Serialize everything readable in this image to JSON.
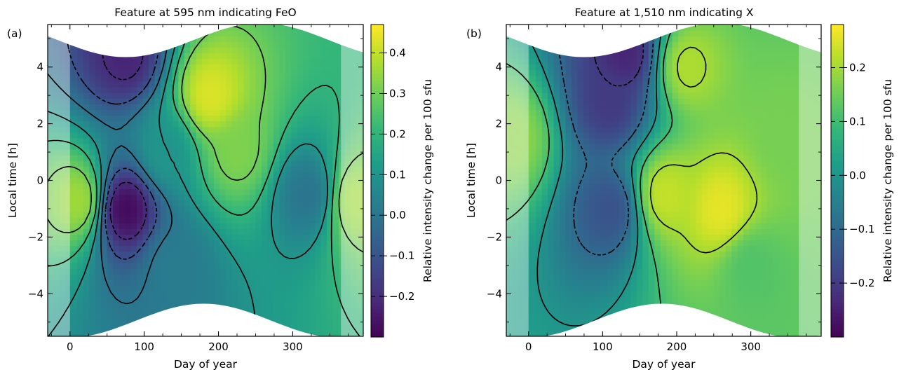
{
  "chart_data": [
    {
      "type": "heatmap",
      "panel_label": "(a)",
      "title": "Feature at 595 nm indicating FeO",
      "xlabel": "Day of year",
      "ylabel": "Local time [h]",
      "xlim": [
        -30,
        395
      ],
      "ylim": [
        -5.5,
        5.5
      ],
      "x_ticks": [
        0,
        100,
        200,
        300
      ],
      "y_ticks": [
        -4,
        -2,
        0,
        2,
        4
      ],
      "colorbar": {
        "label": "Relative intensity change per 100 sfu",
        "range": [
          -0.3,
          0.47
        ],
        "ticks": [
          -0.2,
          -0.1,
          0.0,
          0.1,
          0.2,
          0.3,
          0.4
        ]
      },
      "contour_levels": [
        -0.2,
        -0.1,
        0.0,
        0.1,
        0.2,
        0.3
      ],
      "hotspots": [
        {
          "day": 75,
          "time": -1.0,
          "value": -0.28
        },
        {
          "day": 75,
          "time": 4.4,
          "value": -0.22
        },
        {
          "day": 190,
          "time": 3.0,
          "value": 0.43
        },
        {
          "day": 225,
          "time": 1.0,
          "value": 0.32
        },
        {
          "day": 10,
          "time": -0.7,
          "value": 0.36
        },
        {
          "day": 385,
          "time": -0.7,
          "value": 0.36
        },
        {
          "day": 320,
          "time": -0.5,
          "value": 0.0
        },
        {
          "day": 140,
          "time": -3.0,
          "value": 0.02
        },
        {
          "day": 130,
          "time": 1.0,
          "value": 0.1
        }
      ]
    },
    {
      "type": "heatmap",
      "panel_label": "(b)",
      "title": "Feature at 1,510 nm indicating X",
      "xlabel": "Day of year",
      "ylabel": "Local time [h]",
      "xlim": [
        -30,
        395
      ],
      "ylim": [
        -5.5,
        5.5
      ],
      "x_ticks": [
        0,
        100,
        200,
        300
      ],
      "y_ticks": [
        -4,
        -2,
        0,
        2,
        4
      ],
      "colorbar": {
        "label": "Relative intensity change per 100 sfu",
        "range": [
          -0.3,
          0.28
        ],
        "ticks": [
          -0.2,
          -0.1,
          0.0,
          0.1,
          0.2
        ]
      },
      "contour_levels": [
        -0.2,
        -0.1,
        0.0,
        0.1,
        0.2
      ],
      "hotspots": [
        {
          "day": 130,
          "time": 4.5,
          "value": -0.24
        },
        {
          "day": 110,
          "time": 2.8,
          "value": -0.2
        },
        {
          "day": 110,
          "time": -1.0,
          "value": -0.15
        },
        {
          "day": 260,
          "time": -1.0,
          "value": 0.26
        },
        {
          "day": 185,
          "time": -0.5,
          "value": 0.23
        },
        {
          "day": 215,
          "time": 4.0,
          "value": 0.21
        },
        {
          "day": 345,
          "time": 1.5,
          "value": 0.16
        },
        {
          "day": -20,
          "time": 1.5,
          "value": 0.18
        },
        {
          "day": 300,
          "time": -3.0,
          "value": 0.12
        }
      ]
    }
  ]
}
